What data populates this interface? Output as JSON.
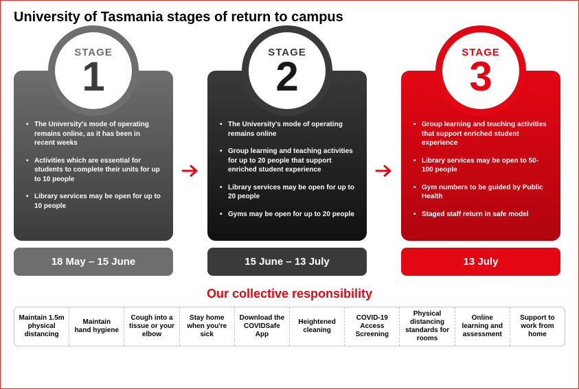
{
  "title": "University of Tasmania stages of return to campus",
  "arrow_color": "#e30613",
  "stages": [
    {
      "label": "STAGE",
      "number": "1",
      "label_color": "#6e6e6e",
      "number_color": "#3c3c3c",
      "ring_color": "#6e6e6e",
      "panel_gradient_top": "#6e6e6e",
      "panel_gradient_bottom": "#3c3c3c",
      "date_bg": "#6e6e6e",
      "date": "18 May – 15 June",
      "bullets": [
        "The University's mode of operating remains online, as it has been in recent weeks",
        "Activities which are essential for students to complete their units for up to 10 people",
        "Library services may be open for up to 10 people"
      ]
    },
    {
      "label": "STAGE",
      "number": "2",
      "label_color": "#3a3a3a",
      "number_color": "#1a1a1a",
      "ring_color": "#3a3a3a",
      "panel_gradient_top": "#3a3a3a",
      "panel_gradient_bottom": "#111111",
      "date_bg": "#3a3a3a",
      "date": "15 June – 13 July",
      "bullets": [
        "The University's mode of operating remains online",
        "Group learning and teaching activities for up to 20 people that support enriched student experience",
        "Library services may be open for up to 20 people",
        "Gyms may be open for up to 20 people"
      ]
    },
    {
      "label": "STAGE",
      "number": "3",
      "label_color": "#e30613",
      "number_color": "#e30613",
      "ring_color": "#e30613",
      "panel_gradient_top": "#e30613",
      "panel_gradient_bottom": "#b0050f",
      "date_bg": "#e30613",
      "date": "13 July",
      "bullets": [
        "Group learning and teaching activities that support enriched student experience",
        "Library services may be open to 50-100 people",
        "Gym numbers to be guided by Public Health",
        "Staged staff return in safe model"
      ]
    }
  ],
  "responsibility": {
    "title": "Our collective responsibility",
    "title_color": "#e30613",
    "items": [
      "Maintain 1.5m physical distancing",
      "Maintain hand hygiene",
      "Cough into a tissue or your elbow",
      "Stay home when you're sick",
      "Download the COVIDSafe App",
      "Heightened cleaning",
      "COVID-19 Access Screening",
      "Physical distancing standards for rooms",
      "Online learning and assessment",
      "Support to work from home"
    ]
  }
}
